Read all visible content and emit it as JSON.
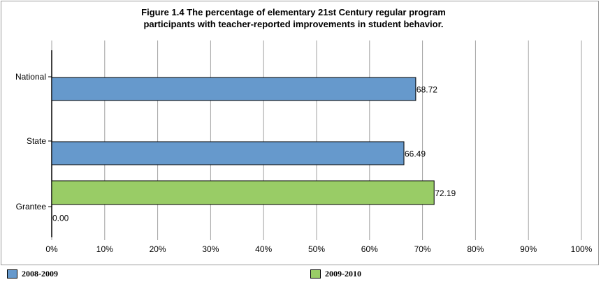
{
  "chart_data": {
    "type": "bar",
    "orientation": "horizontal",
    "title_line1": "Figure 1.4 The percentage of elementary 21st Century regular program",
    "title_line2": "participants with teacher-reported improvements in student behavior.",
    "categories": [
      "National",
      "State",
      "Grantee"
    ],
    "series": [
      {
        "name": "2008-2009",
        "color": "#6699cc",
        "values": [
          68.72,
          66.49,
          0.0
        ]
      },
      {
        "name": "2009-2010",
        "color": "#99cc66",
        "values": [
          null,
          null,
          72.19
        ]
      }
    ],
    "value_labels": [
      "68.72",
      "66.49",
      "72.19",
      "0.00"
    ],
    "xlim": [
      0,
      100
    ],
    "x_ticks": [
      "0%",
      "10%",
      "20%",
      "30%",
      "40%",
      "50%",
      "60%",
      "70%",
      "80%",
      "90%",
      "100%"
    ],
    "grid": true,
    "legend": "bottom"
  }
}
